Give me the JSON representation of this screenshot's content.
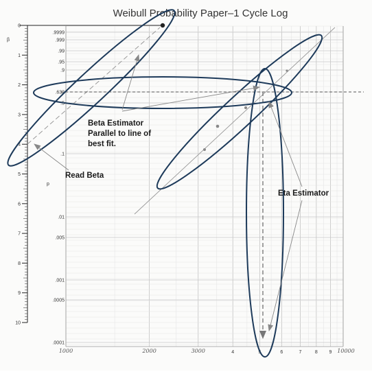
{
  "title": "Weibull Probability Paper–1 Cycle Log",
  "beta_axis": {
    "symbol": "β",
    "ticks": [
      "0",
      "1",
      "2",
      "3",
      "4",
      "5",
      "6",
      "7",
      "8",
      "9",
      "10"
    ]
  },
  "probability_axis": {
    "symbol": "p",
    "ticks": [
      ".9999",
      ".999",
      ".99",
      ".95",
      ".9",
      ".632",
      ".5",
      ".1",
      ".01",
      ".005",
      ".001",
      ".0005",
      ".0001"
    ]
  },
  "x_axis": {
    "printed_ticks": [
      "4",
      "5",
      "6",
      "7",
      "8",
      "9"
    ],
    "handwritten_labels": [
      "1000",
      "2000",
      "3000",
      "5",
      "10000"
    ],
    "scale": "log"
  },
  "annotations": {
    "beta_estimator": [
      "Beta Estimator",
      "Parallel to line of",
      "best fit."
    ],
    "read_beta": "Read Beta",
    "eta_estimator": "Eta Estimator"
  },
  "colors": {
    "ellipse": "#1d3a5a",
    "grid": "#c8c8c8",
    "arrow": "#777777",
    "dashed": "#555555"
  }
}
